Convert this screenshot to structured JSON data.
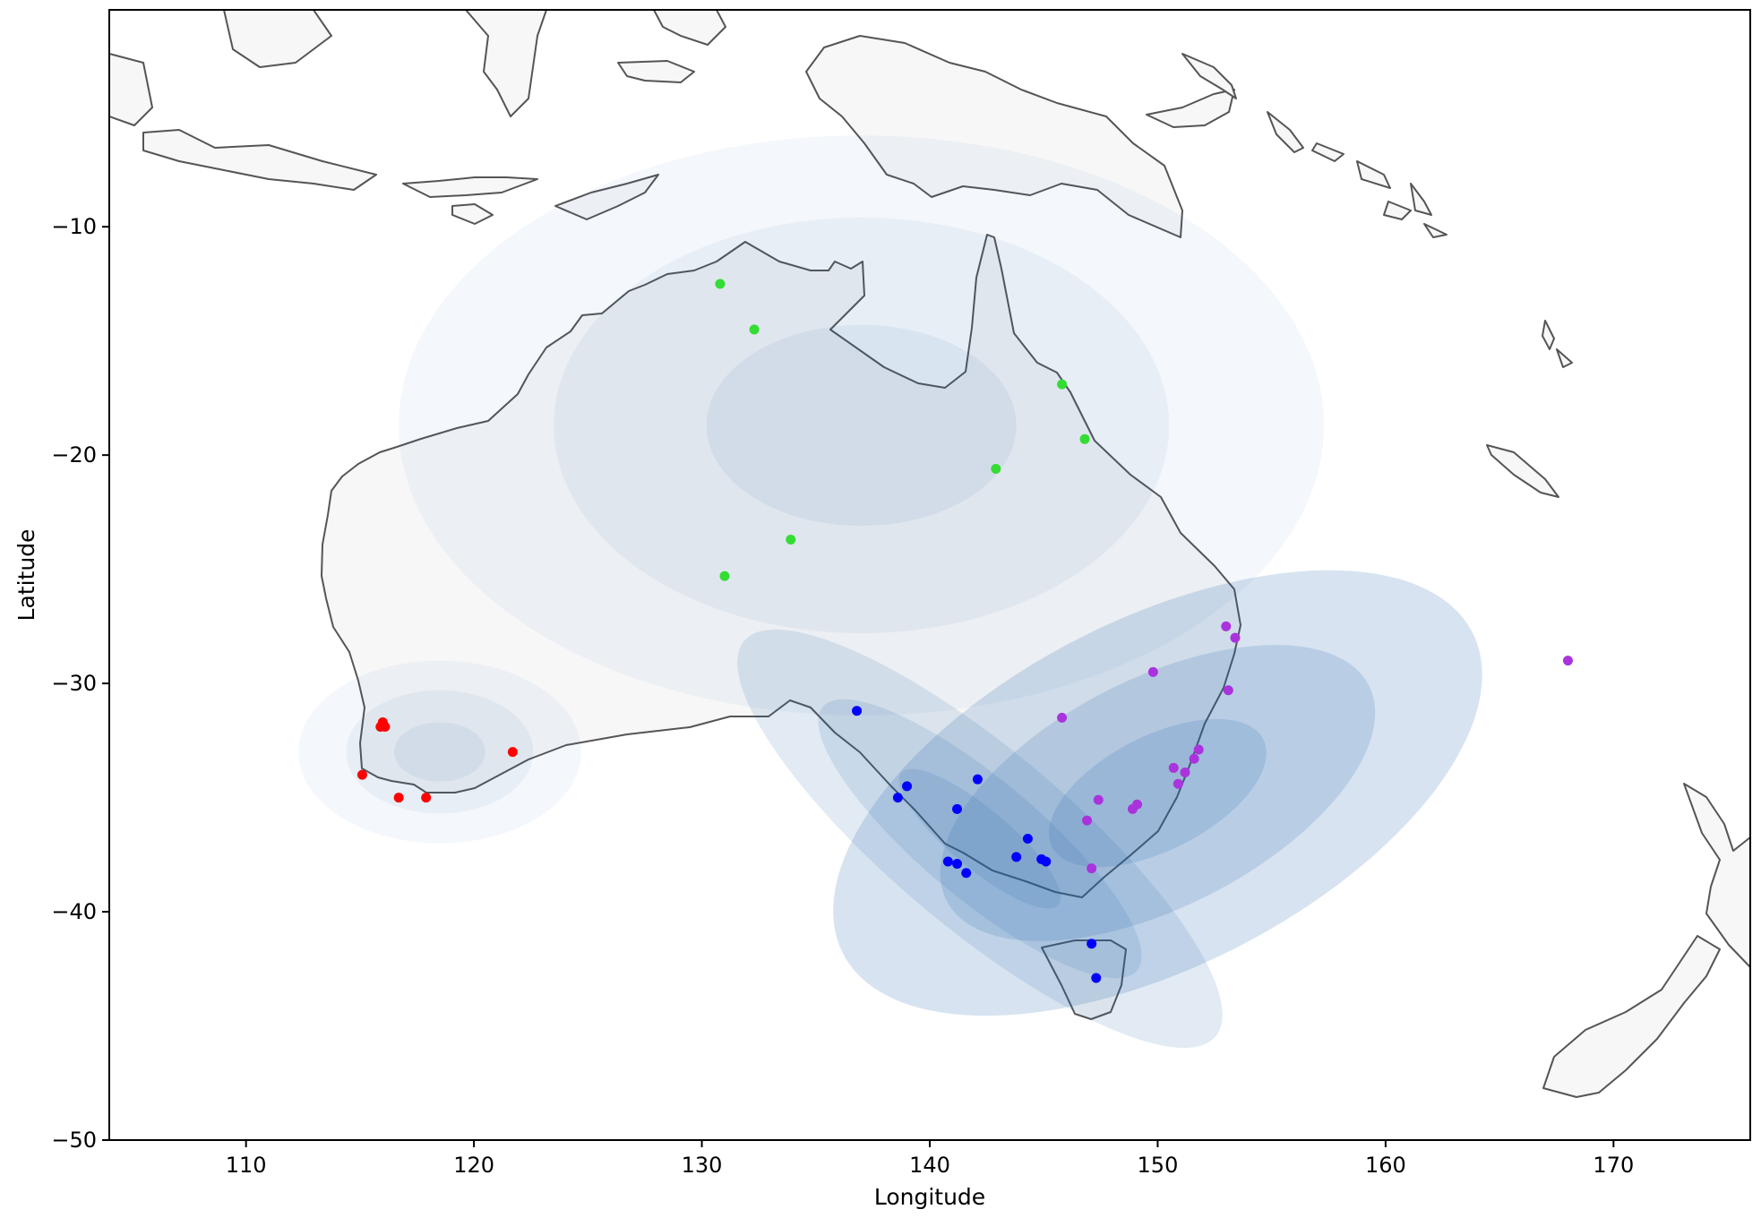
{
  "chart_data": {
    "type": "scatter",
    "title": "",
    "xlabel": "Longitude",
    "ylabel": "Latitude",
    "xlim": [
      104,
      176
    ],
    "ylim": [
      -50,
      -0.5
    ],
    "x_ticks": [
      110,
      120,
      130,
      140,
      150,
      160,
      170
    ],
    "x_tick_labels": [
      "110",
      "120",
      "130",
      "140",
      "150",
      "160",
      "170"
    ],
    "y_ticks": [
      -10,
      -20,
      -30,
      -40,
      -50
    ],
    "y_tick_labels": [
      "−10",
      "−20",
      "−30",
      "−40",
      "−50"
    ],
    "grid": false,
    "legend": "none",
    "background": "map of Australia, Papua New Guinea, Indonesia, New Caledonia and New Zealand coastlines",
    "series": [
      {
        "color": "#ff0000",
        "points": [
          [
            116.0,
            -31.7
          ],
          [
            115.9,
            -31.9
          ],
          [
            116.1,
            -31.9
          ],
          [
            121.7,
            -33.0
          ],
          [
            115.1,
            -34.0
          ],
          [
            116.7,
            -35.0
          ],
          [
            117.9,
            -35.0
          ]
        ]
      },
      {
        "color": "#33dd33",
        "points": [
          [
            130.8,
            -12.5
          ],
          [
            132.3,
            -14.5
          ],
          [
            145.8,
            -16.9
          ],
          [
            146.8,
            -19.3
          ],
          [
            142.9,
            -20.6
          ],
          [
            133.9,
            -23.7
          ],
          [
            131.0,
            -25.3
          ]
        ]
      },
      {
        "color": "#0000ff",
        "points": [
          [
            136.8,
            -31.2
          ],
          [
            139.0,
            -34.5
          ],
          [
            138.6,
            -35.0
          ],
          [
            142.1,
            -34.2
          ],
          [
            141.2,
            -35.5
          ],
          [
            144.3,
            -36.8
          ],
          [
            143.8,
            -37.6
          ],
          [
            144.9,
            -37.7
          ],
          [
            145.1,
            -37.8
          ],
          [
            140.8,
            -37.8
          ],
          [
            141.2,
            -37.9
          ],
          [
            141.6,
            -38.3
          ],
          [
            147.1,
            -41.4
          ],
          [
            147.3,
            -42.9
          ]
        ]
      },
      {
        "color": "#aa33dd",
        "points": [
          [
            153.0,
            -27.5
          ],
          [
            153.4,
            -28.0
          ],
          [
            149.8,
            -29.5
          ],
          [
            153.1,
            -30.3
          ],
          [
            145.8,
            -31.5
          ],
          [
            151.8,
            -32.9
          ],
          [
            151.6,
            -33.3
          ],
          [
            150.7,
            -33.7
          ],
          [
            151.2,
            -33.9
          ],
          [
            150.9,
            -34.4
          ],
          [
            147.4,
            -35.1
          ],
          [
            149.1,
            -35.3
          ],
          [
            148.9,
            -35.5
          ],
          [
            146.9,
            -36.0
          ],
          [
            147.1,
            -38.1
          ],
          [
            168.0,
            -29.0
          ]
        ]
      }
    ],
    "ellipses": [
      {
        "color": "#2166ac",
        "center": [
          137.0,
          -18.7
        ],
        "radii_deg": [
          [
            20.3,
            12.7
          ],
          [
            13.5,
            9.1
          ],
          [
            6.8,
            4.4
          ]
        ],
        "angle_deg": 0,
        "opacities": [
          0.05,
          0.06,
          0.07
        ]
      },
      {
        "color": "#2166ac",
        "center": [
          118.5,
          -33.0
        ],
        "radii_deg": [
          [
            6.2,
            4.0
          ],
          [
            4.1,
            2.7
          ],
          [
            2.0,
            1.3
          ]
        ],
        "angle_deg": 0,
        "opacities": [
          0.05,
          0.06,
          0.07
        ]
      },
      {
        "color": "#2166ac",
        "center": [
          150.0,
          -34.8
        ],
        "radii_deg": [
          [
            15.5,
            7.6
          ],
          [
            10.4,
            5.0
          ],
          [
            5.2,
            2.5
          ]
        ],
        "angle_deg": 27,
        "opacities": [
          0.18,
          0.16,
          0.16
        ]
      },
      {
        "color": "#2166ac",
        "center": [
          142.2,
          -36.8
        ],
        "radii_deg": [
          [
            13.5,
            3.9
          ],
          [
            9.0,
            2.6
          ],
          [
            4.5,
            1.3
          ]
        ],
        "angle_deg": -40,
        "opacities": [
          0.13,
          0.13,
          0.13
        ]
      }
    ]
  }
}
